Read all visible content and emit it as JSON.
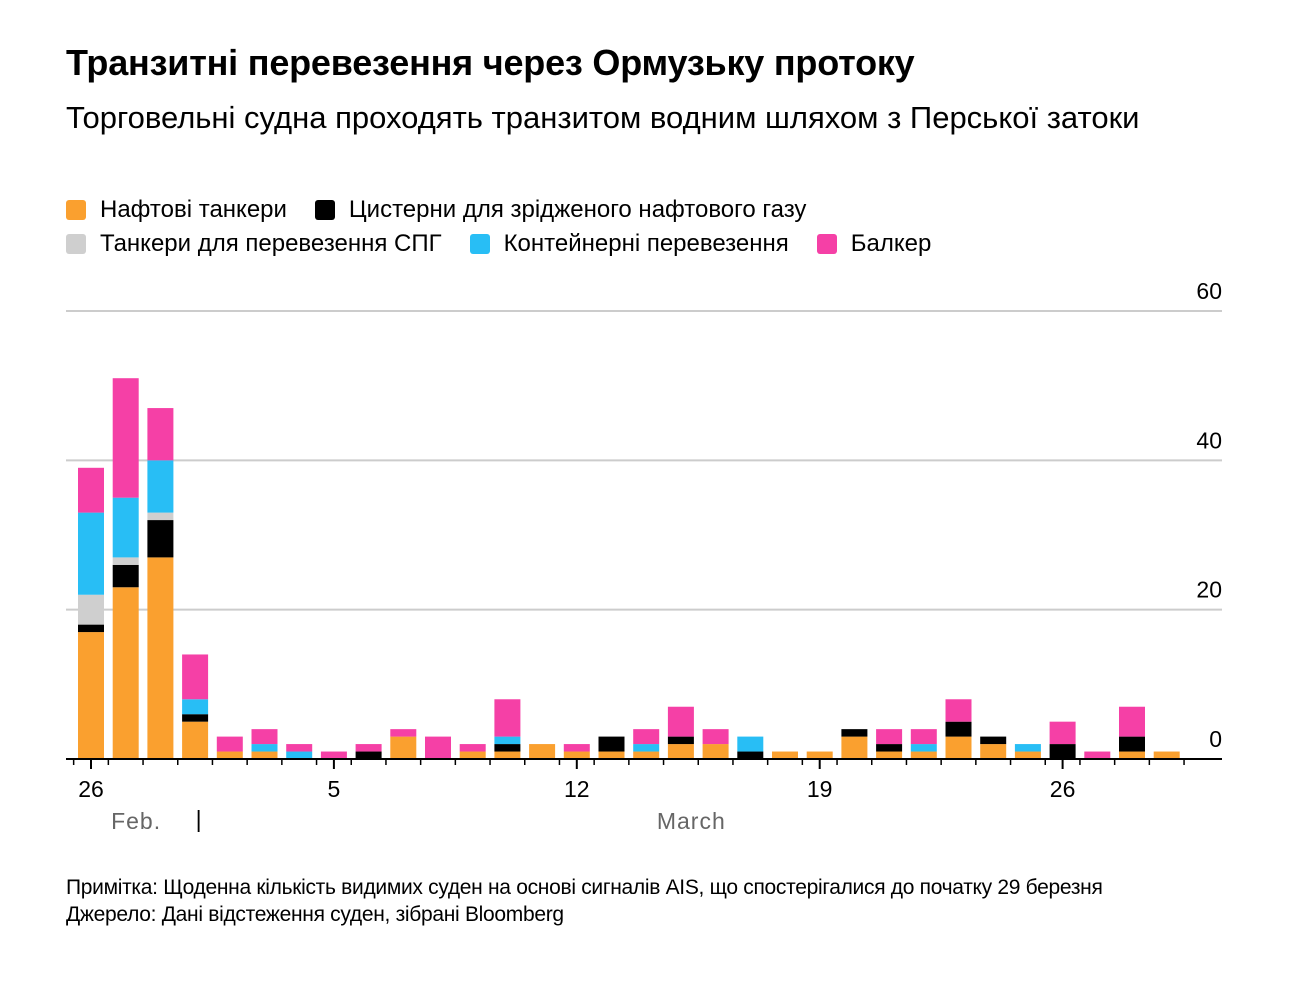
{
  "header": {
    "title": "Транзитні перевезення через Ормузьку протоку",
    "subtitle": "Торговельні судна проходять транзитом водним шляхом з Перської затоки"
  },
  "legend": [
    {
      "label": "Нафтові танкери",
      "color": "#FAA02F"
    },
    {
      "label": "Цистерни для зрідженого нафтового газу",
      "color": "#000000"
    },
    {
      "label": "Танкери для перевезення СПГ",
      "color": "#CFCFCF"
    },
    {
      "label": "Контейнерні перевезення",
      "color": "#28BEF5"
    },
    {
      "label": "Балкер",
      "color": "#F540A6"
    }
  ],
  "chart_data": {
    "type": "bar",
    "stacked": true,
    "title": "Транзитні перевезення через Ормузьку протоку",
    "categories": [
      "Feb 26",
      "Feb 27",
      "Feb 28",
      "Mar 1",
      "Mar 2",
      "Mar 3",
      "Mar 4",
      "Mar 5",
      "Mar 6",
      "Mar 7",
      "Mar 8",
      "Mar 9",
      "Mar 10",
      "Mar 11",
      "Mar 12",
      "Mar 13",
      "Mar 14",
      "Mar 15",
      "Mar 16",
      "Mar 17",
      "Mar 18",
      "Mar 19",
      "Mar 20",
      "Mar 21",
      "Mar 22",
      "Mar 23",
      "Mar 24",
      "Mar 25",
      "Mar 26",
      "Mar 27",
      "Mar 28",
      "Mar 29"
    ],
    "series": [
      {
        "name": "Нафтові танкери",
        "color": "#FAA02F",
        "values": [
          17,
          23,
          27,
          5,
          1,
          1,
          0,
          0,
          0,
          3,
          0,
          1,
          1,
          2,
          1,
          1,
          1,
          2,
          2,
          0,
          1,
          1,
          3,
          1,
          1,
          3,
          2,
          1,
          0,
          0,
          1,
          1
        ]
      },
      {
        "name": "Цистерни для зрідженого нафтового газу",
        "color": "#000000",
        "values": [
          1,
          3,
          5,
          1,
          0,
          0,
          0,
          0,
          1,
          0,
          0,
          0,
          1,
          0,
          0,
          2,
          0,
          1,
          0,
          1,
          0,
          0,
          1,
          1,
          0,
          2,
          1,
          0,
          2,
          0,
          2,
          0
        ]
      },
      {
        "name": "Танкери для перевезення СПГ",
        "color": "#CFCFCF",
        "values": [
          4,
          1,
          1,
          0,
          0,
          0,
          0,
          0,
          0,
          0,
          0,
          0,
          0,
          0,
          0,
          0,
          0,
          0,
          0,
          0,
          0,
          0,
          0,
          0,
          0,
          0,
          0,
          0,
          0,
          0,
          0,
          0
        ]
      },
      {
        "name": "Контейнерні перевезення",
        "color": "#28BEF5",
        "values": [
          11,
          8,
          7,
          2,
          0,
          1,
          1,
          0,
          0,
          0,
          0,
          0,
          1,
          0,
          0,
          0,
          1,
          0,
          0,
          2,
          0,
          0,
          0,
          0,
          1,
          0,
          0,
          1,
          0,
          0,
          0,
          0
        ]
      },
      {
        "name": "Балкер",
        "color": "#F540A6",
        "values": [
          6,
          16,
          7,
          6,
          2,
          2,
          1,
          1,
          1,
          1,
          3,
          1,
          5,
          0,
          1,
          0,
          2,
          4,
          2,
          0,
          0,
          0,
          0,
          2,
          2,
          3,
          0,
          0,
          3,
          1,
          4,
          0
        ]
      }
    ],
    "ylim": [
      0,
      60
    ],
    "yticks": [
      "0",
      "20",
      "40",
      "60"
    ],
    "yaxis_position": "right",
    "xticks": [
      {
        "index": 0,
        "label": "26"
      },
      {
        "index": 7,
        "label": "5"
      },
      {
        "index": 14,
        "label": "12"
      },
      {
        "index": 21,
        "label": "19"
      },
      {
        "index": 28,
        "label": "26"
      }
    ],
    "month_labels": [
      {
        "index": 1.3,
        "label": "Feb."
      },
      {
        "index": 17.3,
        "label": "March"
      }
    ],
    "month_separator_index": 3.1,
    "month_separator_label": "|",
    "grid": true
  },
  "footer": {
    "note": "Примітка: Щоденна кількість видимих суден на основі сигналів AIS, що спостерігалися до початку 29 березня",
    "source": "Джерело: Дані відстеження суден, зібрані Bloomberg"
  }
}
